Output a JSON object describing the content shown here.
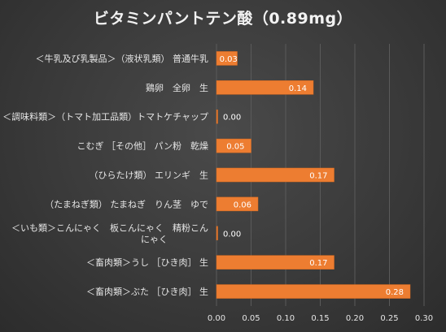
{
  "chart_data": {
    "type": "bar",
    "orientation": "horizontal",
    "title": "ビタミンパントテン酸（0.89mg）",
    "categories": [
      "＜牛乳及び乳製品＞（液状乳類） 普通牛乳",
      "鶏卵 全卵 生",
      "＜調味料類＞（トマト加工品類）トマトケチャップ",
      "こむぎ ［その他］ パン粉 乾燥",
      "（ひらたけ類） エリンギ 生",
      "（たまねぎ類） たまねぎ りん茎 ゆで",
      "＜いも類＞こんにゃく 板こんにゃく 精粉こんにゃく",
      "＜畜肉類＞うし ［ひき肉］ 生",
      "＜畜肉類＞ぶた ［ひき肉］ 生"
    ],
    "category_lines": [
      [
        "＜牛乳及び乳製品＞（液状乳類） 普通牛乳"
      ],
      [
        "鶏卵　全卵　生"
      ],
      [
        "＜調味料類＞（トマト加工品類）トマトケチャップ"
      ],
      [
        "こむぎ ［その他］ パン粉　乾燥"
      ],
      [
        "（ひらたけ類） エリンギ　生"
      ],
      [
        "（たまねぎ類） たまねぎ　りん茎　ゆで"
      ],
      [
        "＜いも類＞こんにゃく　板こんにゃく　精粉こん",
        "にゃく"
      ],
      [
        "＜畜肉類＞うし ［ひき肉］ 生"
      ],
      [
        "＜畜肉類＞ぶた ［ひき肉］ 生"
      ]
    ],
    "values": [
      0.03,
      0.14,
      0.0,
      0.05,
      0.17,
      0.06,
      0.0,
      0.17,
      0.28
    ],
    "value_labels": [
      "0.03",
      "0.14",
      "0.00",
      "0.05",
      "0.17",
      "0.06",
      "0.00",
      "0.17",
      "0.28"
    ],
    "xlim": [
      0,
      0.3
    ],
    "x_ticks": [
      "0.00",
      "0.05",
      "0.10",
      "0.15",
      "0.20",
      "0.25",
      "0.30"
    ],
    "xlabel": "",
    "ylabel": "",
    "grid": true,
    "legend": false,
    "colors": {
      "bar": "#ED7D31",
      "bar_dark": "#D86A1F",
      "grid": "#5a5a5a",
      "text": "#e6e6e6"
    }
  }
}
